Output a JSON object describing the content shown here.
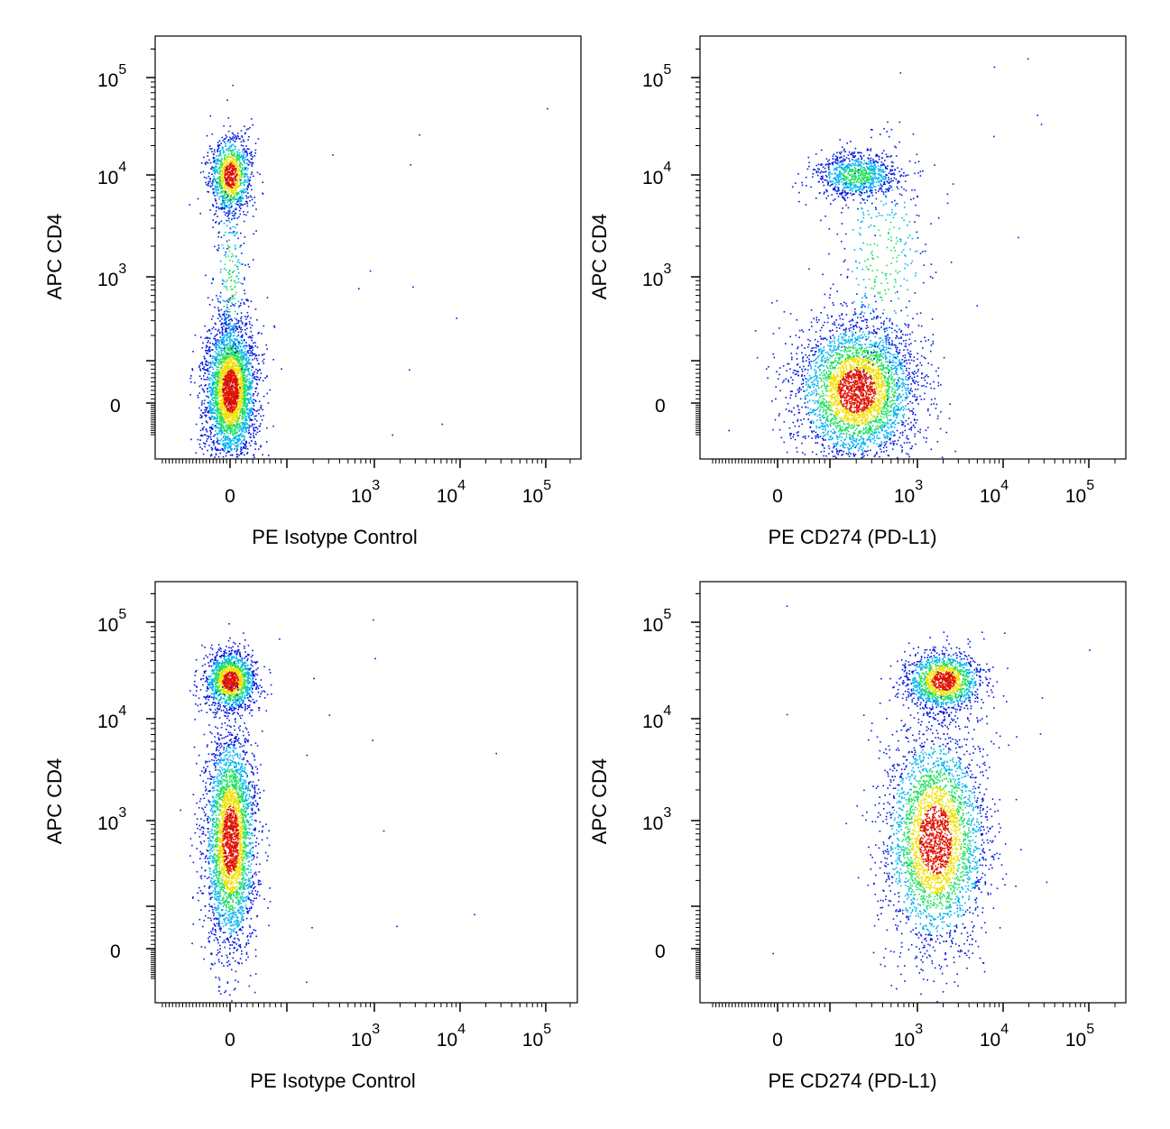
{
  "figure": {
    "colors": {
      "sparse": "#0018e0",
      "low": "#00b4f0",
      "mid": "#20e060",
      "high": "#f0e000",
      "peak": "#e01000"
    },
    "panels": [
      {
        "xlabel": "PE Isotype Control",
        "ylabel": "APC CD4",
        "x_ticks": [
          {
            "label": "0",
            "value": 0
          },
          {
            "label": "10",
            "exp": "3",
            "value": 1000
          },
          {
            "label": "10",
            "exp": "4",
            "value": 10000
          },
          {
            "label": "10",
            "exp": "5",
            "value": 100000
          }
        ],
        "y_ticks": [
          {
            "label": "0",
            "value": 0
          },
          {
            "label": "10",
            "exp": "3",
            "value": 1000
          },
          {
            "label": "10",
            "exp": "4",
            "value": 10000
          },
          {
            "label": "10",
            "exp": "5",
            "value": 100000
          }
        ]
      },
      {
        "xlabel": "PE CD274 (PD-L1)",
        "ylabel": "APC CD4",
        "x_ticks": [
          {
            "label": "0",
            "value": 0
          },
          {
            "label": "10",
            "exp": "3",
            "value": 1000
          },
          {
            "label": "10",
            "exp": "4",
            "value": 10000
          },
          {
            "label": "10",
            "exp": "5",
            "value": 100000
          }
        ],
        "y_ticks": [
          {
            "label": "0",
            "value": 0
          },
          {
            "label": "10",
            "exp": "3",
            "value": 1000
          },
          {
            "label": "10",
            "exp": "4",
            "value": 10000
          },
          {
            "label": "10",
            "exp": "5",
            "value": 100000
          }
        ]
      },
      {
        "xlabel": "PE Isotype Control",
        "ylabel": "APC CD4",
        "x_ticks": [
          {
            "label": "0",
            "value": 0
          },
          {
            "label": "10",
            "exp": "3",
            "value": 1000
          },
          {
            "label": "10",
            "exp": "4",
            "value": 10000
          },
          {
            "label": "10",
            "exp": "5",
            "value": 100000
          }
        ],
        "y_ticks": [
          {
            "label": "0",
            "value": 0
          },
          {
            "label": "10",
            "exp": "3",
            "value": 1000
          },
          {
            "label": "10",
            "exp": "4",
            "value": 10000
          },
          {
            "label": "10",
            "exp": "5",
            "value": 100000
          }
        ]
      },
      {
        "xlabel": "PE CD274 (PD-L1)",
        "ylabel": "APC CD4",
        "x_ticks": [
          {
            "label": "0",
            "value": 0
          },
          {
            "label": "10",
            "exp": "3",
            "value": 1000
          },
          {
            "label": "10",
            "exp": "4",
            "value": 10000
          },
          {
            "label": "10",
            "exp": "5",
            "value": 100000
          }
        ],
        "y_ticks": [
          {
            "label": "0",
            "value": 0
          },
          {
            "label": "10",
            "exp": "3",
            "value": 1000
          },
          {
            "label": "10",
            "exp": "4",
            "value": 10000
          },
          {
            "label": "10",
            "exp": "5",
            "value": 100000
          }
        ]
      }
    ]
  },
  "chart_data": [
    {
      "type": "scatter",
      "xlabel": "PE Isotype Control",
      "ylabel": "APC CD4",
      "x_scale": "biexponential",
      "y_scale": "biexponential",
      "xlim": [
        -200,
        200000
      ],
      "ylim": [
        -150,
        230000
      ],
      "grid": false,
      "series": [
        {
          "center": [
            0,
            10000
          ],
          "spread_decades": [
            0.12,
            0.2
          ],
          "count": 1100
        },
        {
          "center": [
            0,
            30
          ],
          "spread_decades": [
            0.15,
            0.35
          ],
          "count": 3200
        },
        {
          "center": [
            0,
            1000
          ],
          "spread_decades": [
            0.1,
            0.5
          ],
          "count": 250
        }
      ]
    },
    {
      "type": "scatter",
      "xlabel": "PE CD274 (PD-L1)",
      "ylabel": "APC CD4",
      "x_scale": "biexponential",
      "y_scale": "biexponential",
      "xlim": [
        -200,
        200000
      ],
      "ylim": [
        -150,
        230000
      ],
      "grid": false,
      "series": [
        {
          "center": [
            200,
            10000
          ],
          "spread_decades": [
            0.25,
            0.12
          ],
          "count": 900
        },
        {
          "center": [
            200,
            30
          ],
          "spread_decades": [
            0.35,
            0.35
          ],
          "count": 3600
        },
        {
          "center": [
            400,
            1500
          ],
          "spread_decades": [
            0.3,
            0.6
          ],
          "count": 350
        }
      ]
    },
    {
      "type": "scatter",
      "xlabel": "PE Isotype Control",
      "ylabel": "APC CD4",
      "x_scale": "biexponential",
      "y_scale": "biexponential",
      "xlim": [
        -200,
        200000
      ],
      "ylim": [
        -150,
        230000
      ],
      "grid": false,
      "series": [
        {
          "center": [
            0,
            25000
          ],
          "spread_decades": [
            0.15,
            0.15
          ],
          "count": 1500
        },
        {
          "center": [
            0,
            600
          ],
          "spread_decades": [
            0.15,
            0.55
          ],
          "count": 3200
        }
      ]
    },
    {
      "type": "scatter",
      "xlabel": "PE CD274 (PD-L1)",
      "ylabel": "APC CD4",
      "x_scale": "biexponential",
      "y_scale": "biexponential",
      "xlim": [
        -200,
        200000
      ],
      "ylim": [
        -150,
        230000
      ],
      "grid": false,
      "series": [
        {
          "center": [
            2000,
            25000
          ],
          "spread_decades": [
            0.22,
            0.15
          ],
          "count": 1500
        },
        {
          "center": [
            1600,
            600
          ],
          "spread_decades": [
            0.3,
            0.55
          ],
          "count": 3200
        }
      ]
    }
  ]
}
